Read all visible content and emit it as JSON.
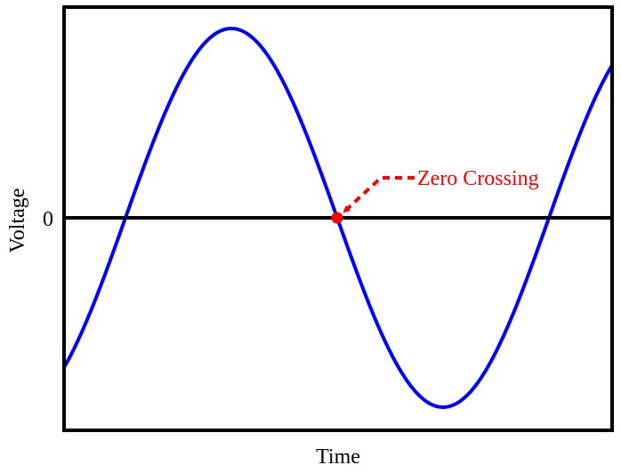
{
  "axes": {
    "x_label": "Time",
    "y_label": "Voltage",
    "zero_label": "0"
  },
  "annotation": "Zero Crossing"
}
